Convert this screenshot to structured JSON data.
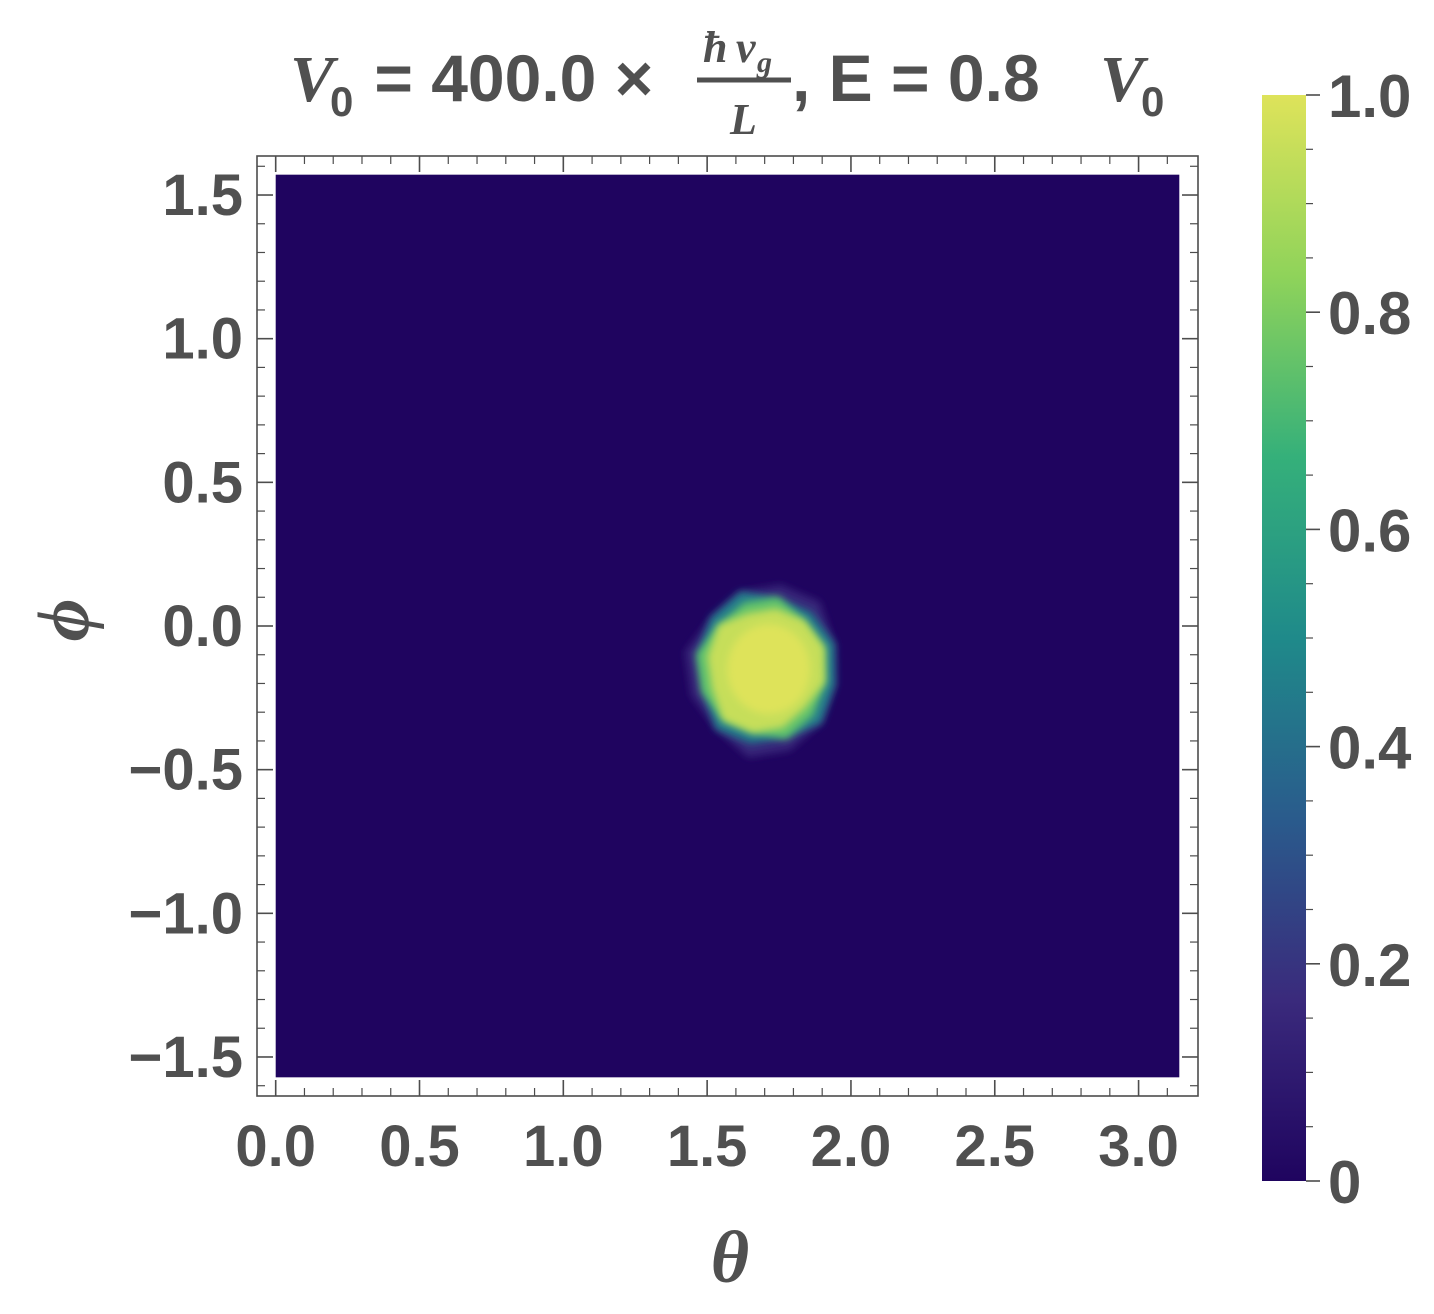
{
  "chart_data": {
    "type": "heatmap",
    "title": {
      "lhs_symbol": "V",
      "lhs_subscript": "0",
      "equals_value": " = 400.0 ×",
      "fraction_numerator_hbar": "ħ",
      "fraction_numerator_v": "v",
      "fraction_numerator_sub": "g",
      "fraction_denominator": "L",
      "energy_part": ", E = 0.8",
      "energy_symbol": "V",
      "energy_subscript": "0"
    },
    "xlabel": "θ",
    "ylabel": "ϕ",
    "xlim": [
      0.0,
      3.1416
    ],
    "ylim": [
      -1.5708,
      1.5708
    ],
    "frame_xlim": [
      -0.065,
      3.2066
    ],
    "frame_ylim": [
      -1.6358,
      1.6358
    ],
    "x_ticks": [
      {
        "value": 0.0,
        "label": "0.0"
      },
      {
        "value": 0.5,
        "label": "0.5"
      },
      {
        "value": 1.0,
        "label": "1.0"
      },
      {
        "value": 1.5,
        "label": "1.5"
      },
      {
        "value": 2.0,
        "label": "2.0"
      },
      {
        "value": 2.5,
        "label": "2.5"
      },
      {
        "value": 3.0,
        "label": "3.0"
      }
    ],
    "y_ticks": [
      {
        "value": 1.5,
        "label": "1.5"
      },
      {
        "value": 1.0,
        "label": "1.0"
      },
      {
        "value": 0.5,
        "label": "0.5"
      },
      {
        "value": 0.0,
        "label": "0.0"
      },
      {
        "value": -0.5,
        "label": "−0.5"
      },
      {
        "value": -1.0,
        "label": "−1.0"
      },
      {
        "value": -1.5,
        "label": "−1.5"
      }
    ],
    "colorbar": {
      "range": [
        0,
        1
      ],
      "ticks": [
        {
          "value": 1.0,
          "label": "1.0"
        },
        {
          "value": 0.8,
          "label": "0.8"
        },
        {
          "value": 0.6,
          "label": "0.6"
        },
        {
          "value": 0.4,
          "label": "0.4"
        },
        {
          "value": 0.2,
          "label": "0.2"
        },
        {
          "value": 0.0,
          "label": "0"
        }
      ],
      "colormap": [
        "#1f045f",
        "#3a2a7c",
        "#2a5b8c",
        "#1f8a8a",
        "#35b07a",
        "#8fd35a",
        "#dee35a"
      ]
    },
    "background_value": 0.0,
    "spot": {
      "center": [
        1.7,
        -0.15
      ],
      "radius_theta": 0.24,
      "radius_phi": 0.26,
      "peak_value": 1.0
    }
  }
}
